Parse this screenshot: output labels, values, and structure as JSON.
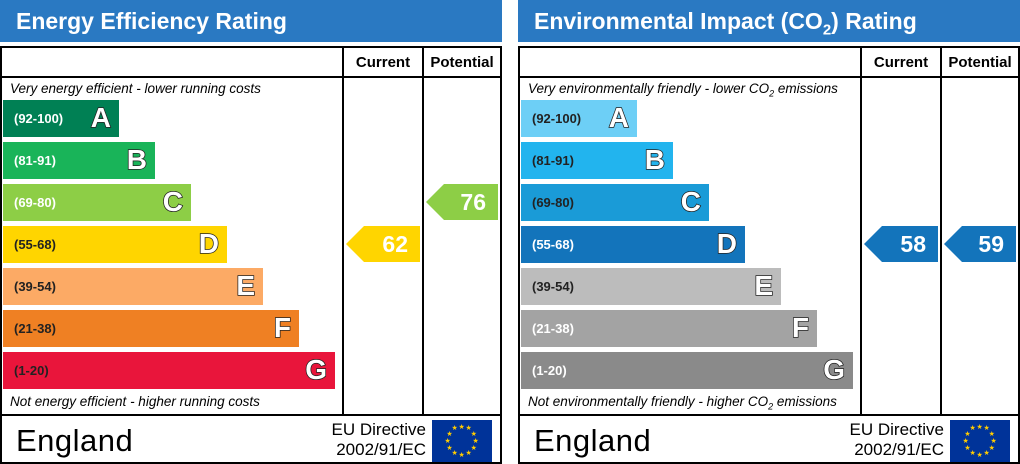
{
  "chart_data": [
    {
      "type": "bar",
      "title": "Energy Efficiency Rating",
      "columns": [
        "Current",
        "Potential"
      ],
      "top_note": "Very energy efficient - lower running costs",
      "bottom_note": "Not energy efficient - higher running costs",
      "categories": [
        "A",
        "B",
        "C",
        "D",
        "E",
        "F",
        "G"
      ],
      "ranges": [
        "(92-100)",
        "(81-91)",
        "(69-80)",
        "(55-68)",
        "(39-54)",
        "(21-38)",
        "(1-20)"
      ],
      "band_colors": [
        "#008054",
        "#19b459",
        "#8dce46",
        "#ffd500",
        "#fcaa65",
        "#ef8023",
        "#e9153b"
      ],
      "current": {
        "value": 62,
        "band": "D",
        "color": "#ffd500"
      },
      "potential": {
        "value": 76,
        "band": "C",
        "color": "#8dce46"
      },
      "country": "England",
      "directive": [
        "EU Directive",
        "2002/91/EC"
      ]
    },
    {
      "type": "bar",
      "title_prefix": "Environmental Impact (CO",
      "title_sub": "2",
      "title_suffix": ") Rating",
      "columns": [
        "Current",
        "Potential"
      ],
      "top_note_prefix": "Very environmentally friendly - lower CO",
      "top_note_sub": "2",
      "top_note_suffix": " emissions",
      "bottom_note_prefix": "Not environmentally friendly - higher CO",
      "bottom_note_sub": "2",
      "bottom_note_suffix": " emissions",
      "categories": [
        "A",
        "B",
        "C",
        "D",
        "E",
        "F",
        "G"
      ],
      "ranges": [
        "(92-100)",
        "(81-91)",
        "(69-80)",
        "(55-68)",
        "(39-54)",
        "(21-38)",
        "(1-20)"
      ],
      "band_colors": [
        "#6dcff6",
        "#22b4ee",
        "#1a9bd7",
        "#1374bb",
        "#bcbcbc",
        "#a3a3a3",
        "#8a8a8a"
      ],
      "current": {
        "value": 58,
        "band": "D",
        "color": "#1374bb"
      },
      "potential": {
        "value": 59,
        "band": "D",
        "color": "#1374bb"
      },
      "country": "England",
      "directive": [
        "EU Directive",
        "2002/91/EC"
      ]
    }
  ]
}
